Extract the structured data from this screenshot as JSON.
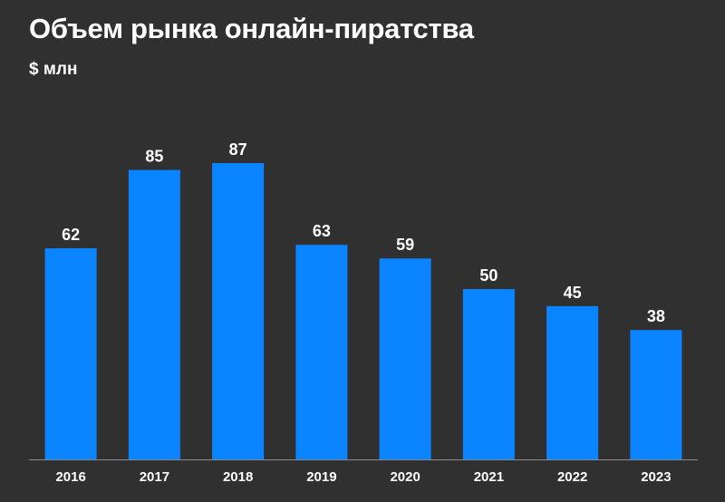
{
  "chart_data": {
    "type": "bar",
    "title": "Объем рынка онлайн-пиратства",
    "subtitle": "$ млн",
    "categories": [
      "2016",
      "2017",
      "2018",
      "2019",
      "2020",
      "2021",
      "2022",
      "2023"
    ],
    "values": [
      62,
      85,
      87,
      63,
      59,
      50,
      45,
      38
    ],
    "value_labels": [
      "62",
      "85",
      "87",
      "63",
      "59",
      "50",
      "45",
      "38"
    ],
    "xlabel": "",
    "ylabel": "",
    "ylim": [
      0,
      87
    ],
    "grid": false,
    "legend": "none",
    "colors": {
      "background": "#303030",
      "bar": "#0a84ff",
      "text": "#ffffff",
      "axis": "#8a8a8a"
    }
  }
}
